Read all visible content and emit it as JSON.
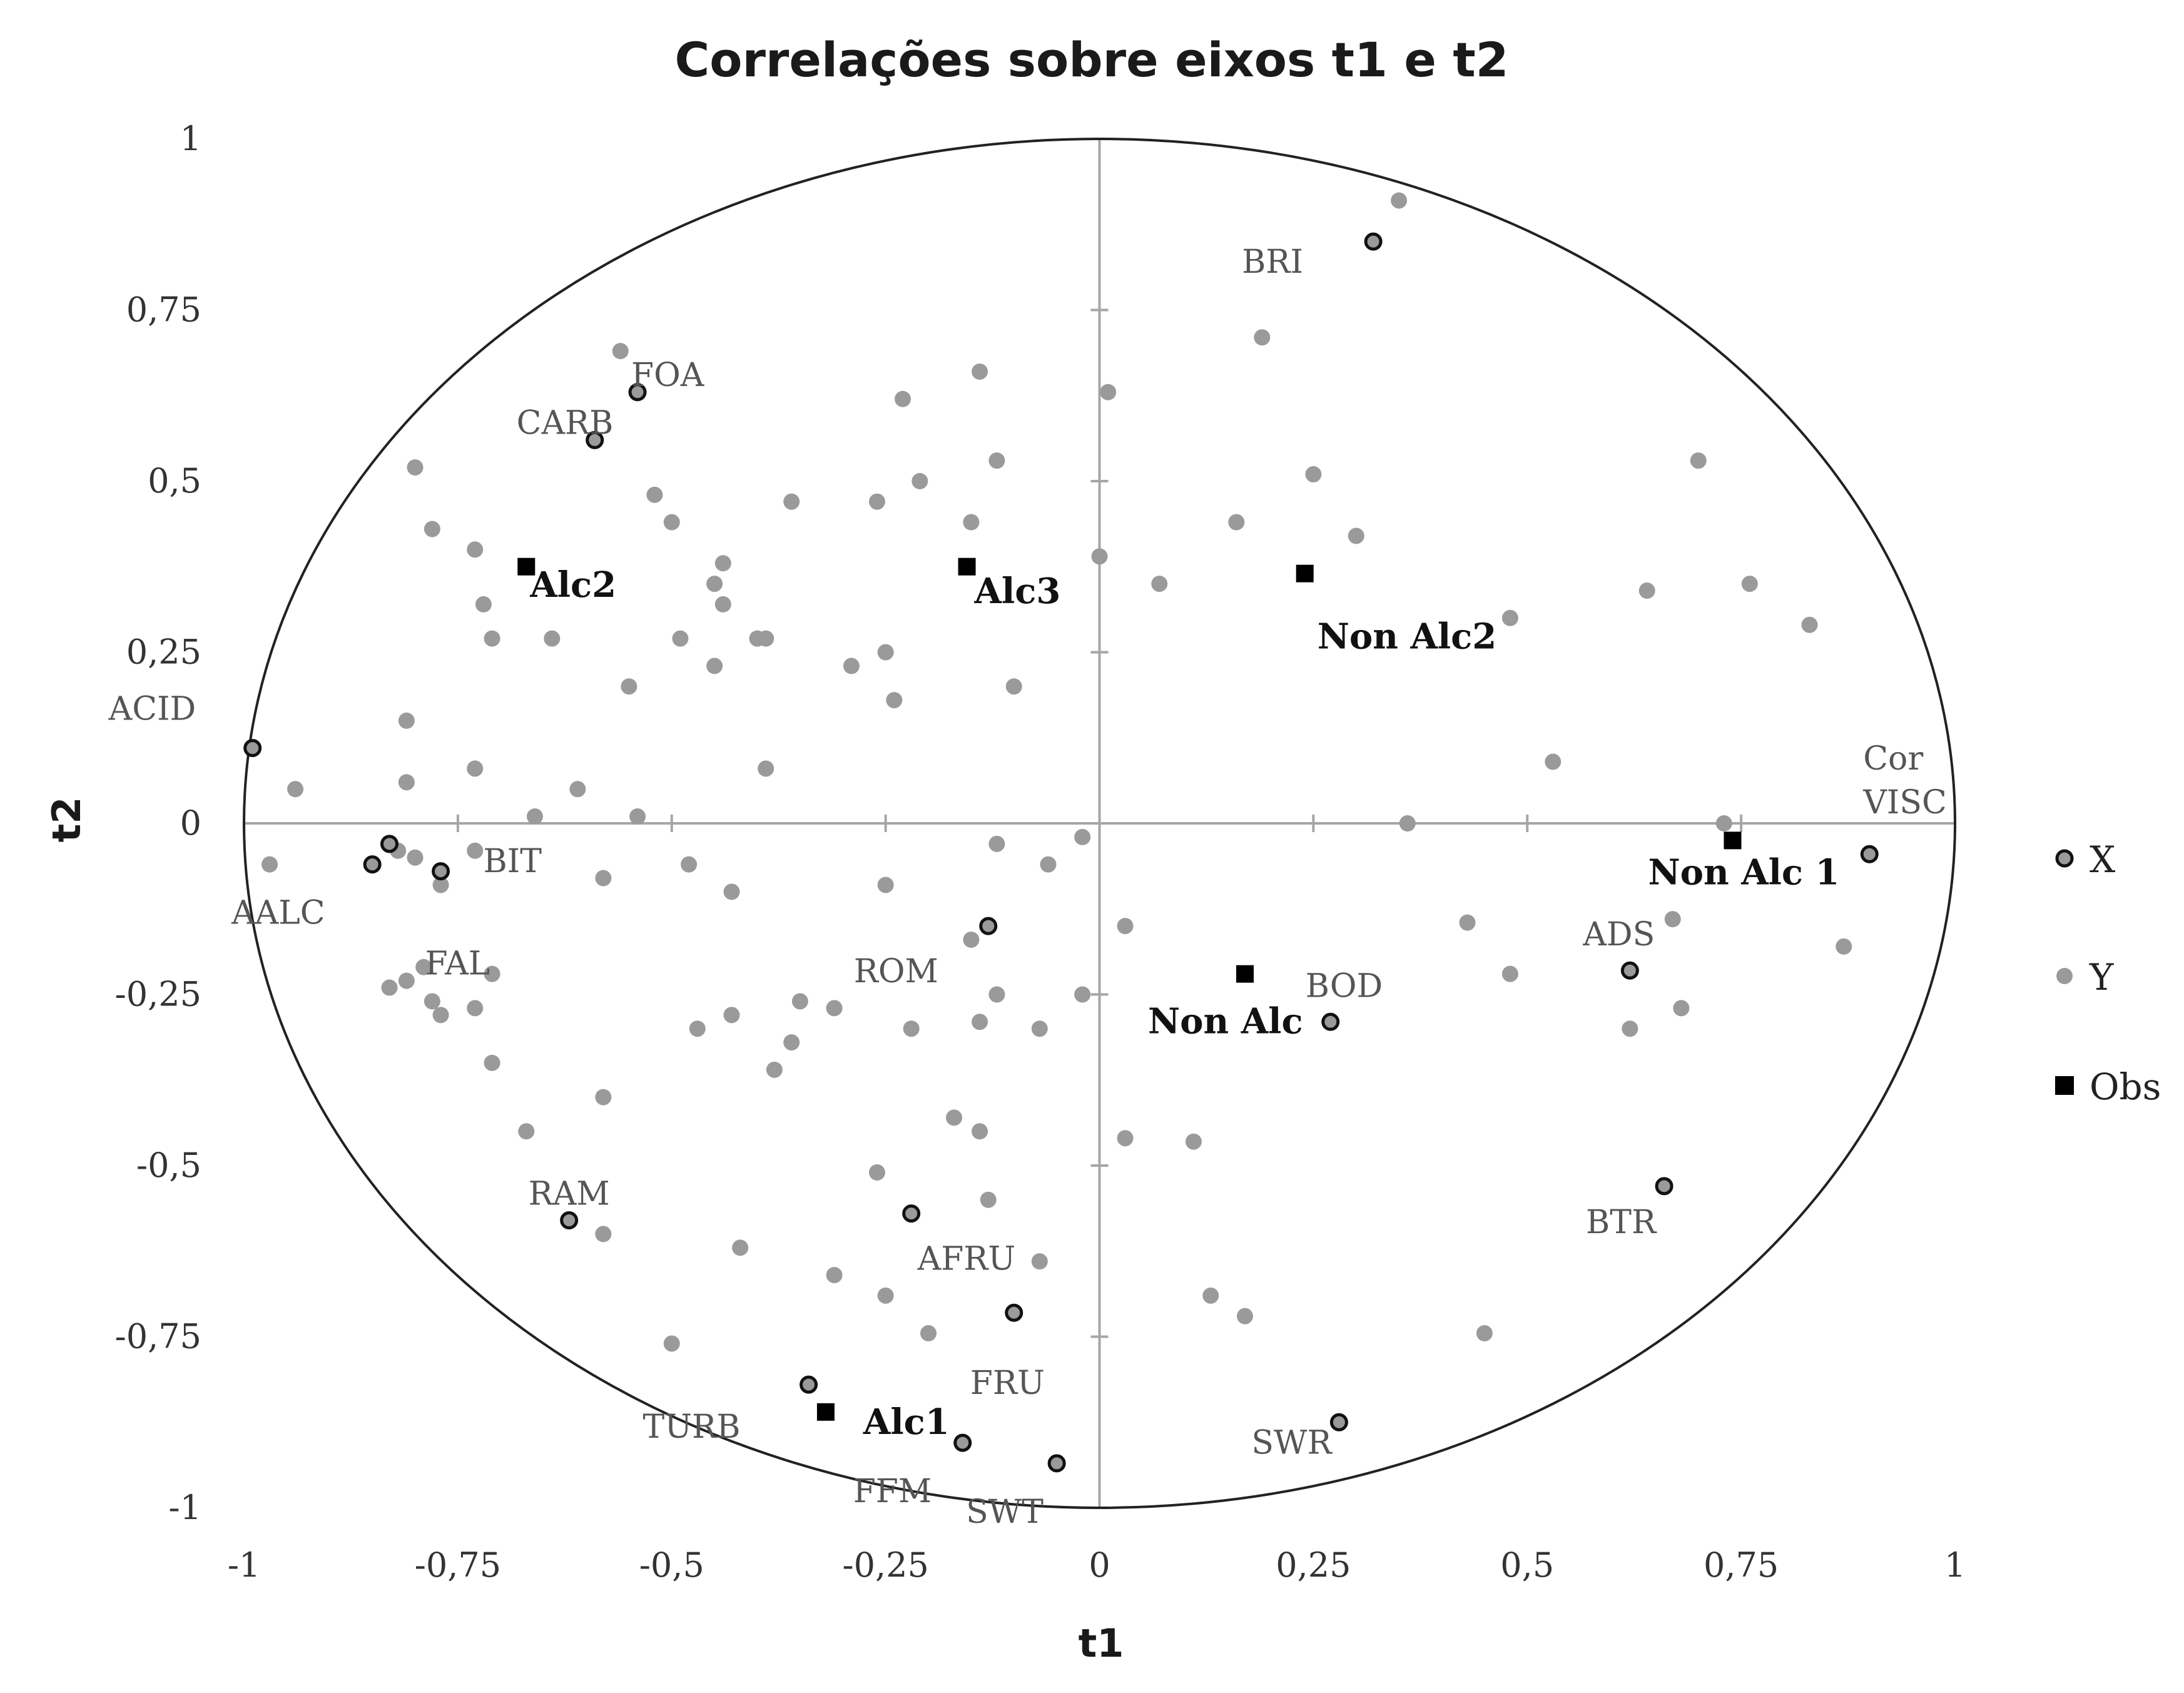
{
  "chart_data": {
    "type": "scatter",
    "title": "Correlações sobre eixos t1 e t2",
    "xlabel": "t1",
    "ylabel": "t2",
    "xlim": [
      -1,
      1
    ],
    "ylim": [
      -1,
      1
    ],
    "x_ticks": [
      "-1",
      "-0,75",
      "-0,5",
      "-0,25",
      "0",
      "0,25",
      "0,5",
      "0,75",
      "1"
    ],
    "y_ticks": [
      "1",
      "0,75",
      "0,5",
      "0,25",
      "0",
      "-0,25",
      "-0,5",
      "-0,75",
      "-1"
    ],
    "correlation_circle": true,
    "legend_position": "right",
    "colors": {
      "X": "#9a9a9a",
      "Y": "#9a9a9a",
      "Obs": "#000000",
      "axis": "#a6a6a6",
      "circle": "#222222"
    },
    "series": [
      {
        "name": "X",
        "marker": "ring",
        "points": [
          {
            "label": "BRI",
            "x": 0.32,
            "y": 0.85
          },
          {
            "label": "FOA",
            "x": -0.54,
            "y": 0.63
          },
          {
            "label": "CARB",
            "x": -0.59,
            "y": 0.56
          },
          {
            "label": "ACID",
            "x": -0.99,
            "y": 0.11
          },
          {
            "label": "BIT",
            "x": -0.83,
            "y": -0.03
          },
          {
            "label": "AALC",
            "x": -0.85,
            "y": -0.06
          },
          {
            "label": "FAL",
            "x": -0.77,
            "y": -0.07
          },
          {
            "label": "ROM",
            "x": -0.13,
            "y": -0.15
          },
          {
            "label": "Cor",
            "x": 0.9,
            "y": -0.045
          },
          {
            "label": "ADS",
            "x": 0.62,
            "y": -0.215
          },
          {
            "label": "BOD",
            "x": 0.27,
            "y": -0.29
          },
          {
            "label": "BTR",
            "x": 0.66,
            "y": -0.53
          },
          {
            "label": "RAM",
            "x": -0.62,
            "y": -0.58
          },
          {
            "label": "AFRU",
            "x": -0.22,
            "y": -0.57
          },
          {
            "label": "FRU",
            "x": -0.1,
            "y": -0.715
          },
          {
            "label": "TURB",
            "x": -0.34,
            "y": -0.82
          },
          {
            "label": "FFM",
            "x": -0.16,
            "y": -0.905
          },
          {
            "label": "SWT",
            "x": -0.05,
            "y": -0.935
          },
          {
            "label": "SWR",
            "x": 0.28,
            "y": -0.875
          }
        ]
      },
      {
        "name": "Y",
        "marker": "dot",
        "points": [
          {
            "x": 0.35,
            "y": 0.91
          },
          {
            "x": 0.19,
            "y": 0.71
          },
          {
            "x": -0.56,
            "y": 0.69
          },
          {
            "x": -0.14,
            "y": 0.66
          },
          {
            "x": 0.01,
            "y": 0.63
          },
          {
            "x": -0.23,
            "y": 0.62
          },
          {
            "x": -0.8,
            "y": 0.52
          },
          {
            "x": -0.12,
            "y": 0.53
          },
          {
            "x": 0.7,
            "y": 0.53
          },
          {
            "x": 0.25,
            "y": 0.51
          },
          {
            "x": -0.52,
            "y": 0.48
          },
          {
            "x": -0.36,
            "y": 0.47
          },
          {
            "x": -0.26,
            "y": 0.47
          },
          {
            "x": -0.21,
            "y": 0.5
          },
          {
            "x": -0.78,
            "y": 0.43
          },
          {
            "x": -0.5,
            "y": 0.44
          },
          {
            "x": -0.15,
            "y": 0.44
          },
          {
            "x": 0.16,
            "y": 0.44
          },
          {
            "x": 0.3,
            "y": 0.42
          },
          {
            "x": -0.73,
            "y": 0.4
          },
          {
            "x": -0.44,
            "y": 0.38
          },
          {
            "x": 0.0,
            "y": 0.39
          },
          {
            "x": -0.45,
            "y": 0.35
          },
          {
            "x": 0.07,
            "y": 0.35
          },
          {
            "x": 0.76,
            "y": 0.35
          },
          {
            "x": 0.64,
            "y": 0.34
          },
          {
            "x": -0.72,
            "y": 0.32
          },
          {
            "x": -0.44,
            "y": 0.32
          },
          {
            "x": 0.48,
            "y": 0.3
          },
          {
            "x": 0.83,
            "y": 0.29
          },
          {
            "x": -0.71,
            "y": 0.27
          },
          {
            "x": -0.64,
            "y": 0.27
          },
          {
            "x": -0.49,
            "y": 0.27
          },
          {
            "x": -0.4,
            "y": 0.27
          },
          {
            "x": -0.39,
            "y": 0.27
          },
          {
            "x": -0.25,
            "y": 0.25
          },
          {
            "x": -0.29,
            "y": 0.23
          },
          {
            "x": -0.45,
            "y": 0.23
          },
          {
            "x": -0.55,
            "y": 0.2
          },
          {
            "x": -0.1,
            "y": 0.2
          },
          {
            "x": -0.24,
            "y": 0.18
          },
          {
            "x": -0.81,
            "y": 0.15
          },
          {
            "x": 0.53,
            "y": 0.09
          },
          {
            "x": -0.73,
            "y": 0.08
          },
          {
            "x": -0.39,
            "y": 0.08
          },
          {
            "x": -0.94,
            "y": 0.05
          },
          {
            "x": -0.81,
            "y": 0.06
          },
          {
            "x": -0.61,
            "y": 0.05
          },
          {
            "x": -0.66,
            "y": 0.01
          },
          {
            "x": -0.54,
            "y": 0.01
          },
          {
            "x": 0.36,
            "y": 0.0
          },
          {
            "x": 0.73,
            "y": 0.0
          },
          {
            "x": -0.97,
            "y": -0.06
          },
          {
            "x": -0.82,
            "y": -0.04
          },
          {
            "x": -0.8,
            "y": -0.05
          },
          {
            "x": -0.73,
            "y": -0.04
          },
          {
            "x": -0.77,
            "y": -0.09
          },
          {
            "x": -0.58,
            "y": -0.08
          },
          {
            "x": -0.48,
            "y": -0.06
          },
          {
            "x": -0.43,
            "y": -0.1
          },
          {
            "x": -0.25,
            "y": -0.09
          },
          {
            "x": -0.12,
            "y": -0.03
          },
          {
            "x": -0.06,
            "y": -0.06
          },
          {
            "x": -0.02,
            "y": -0.02
          },
          {
            "x": -0.15,
            "y": -0.17
          },
          {
            "x": 0.03,
            "y": -0.15
          },
          {
            "x": 0.43,
            "y": -0.145
          },
          {
            "x": 0.67,
            "y": -0.14
          },
          {
            "x": 0.87,
            "y": -0.18
          },
          {
            "x": -0.79,
            "y": -0.21
          },
          {
            "x": -0.81,
            "y": -0.23
          },
          {
            "x": -0.83,
            "y": -0.24
          },
          {
            "x": -0.71,
            "y": -0.22
          },
          {
            "x": -0.78,
            "y": -0.26
          },
          {
            "x": -0.77,
            "y": -0.28
          },
          {
            "x": -0.73,
            "y": -0.27
          },
          {
            "x": -0.35,
            "y": -0.26
          },
          {
            "x": -0.12,
            "y": -0.25
          },
          {
            "x": -0.02,
            "y": -0.25
          },
          {
            "x": 0.48,
            "y": -0.22
          },
          {
            "x": -0.43,
            "y": -0.28
          },
          {
            "x": -0.31,
            "y": -0.27
          },
          {
            "x": -0.47,
            "y": -0.3
          },
          {
            "x": -0.22,
            "y": -0.3
          },
          {
            "x": -0.14,
            "y": -0.29
          },
          {
            "x": -0.07,
            "y": -0.3
          },
          {
            "x": 0.62,
            "y": -0.3
          },
          {
            "x": 0.68,
            "y": -0.27
          },
          {
            "x": -0.36,
            "y": -0.32
          },
          {
            "x": -0.71,
            "y": -0.35
          },
          {
            "x": -0.38,
            "y": -0.36
          },
          {
            "x": -0.58,
            "y": -0.4
          },
          {
            "x": -0.17,
            "y": -0.43
          },
          {
            "x": -0.67,
            "y": -0.45
          },
          {
            "x": -0.14,
            "y": -0.45
          },
          {
            "x": 0.03,
            "y": -0.46
          },
          {
            "x": 0.11,
            "y": -0.465
          },
          {
            "x": -0.26,
            "y": -0.51
          },
          {
            "x": -0.13,
            "y": -0.55
          },
          {
            "x": -0.58,
            "y": -0.6
          },
          {
            "x": -0.42,
            "y": -0.62
          },
          {
            "x": -0.07,
            "y": -0.64
          },
          {
            "x": -0.31,
            "y": -0.66
          },
          {
            "x": -0.25,
            "y": -0.69
          },
          {
            "x": 0.13,
            "y": -0.69
          },
          {
            "x": 0.17,
            "y": -0.72
          },
          {
            "x": -0.2,
            "y": -0.745
          },
          {
            "x": 0.45,
            "y": -0.745
          },
          {
            "x": -0.5,
            "y": -0.76
          }
        ]
      },
      {
        "name": "Obs",
        "marker": "square",
        "points": [
          {
            "label": "Alc2",
            "x": -0.67,
            "y": 0.375
          },
          {
            "label": "Alc3",
            "x": -0.155,
            "y": 0.375
          },
          {
            "label": "Non Alc2",
            "x": 0.24,
            "y": 0.365
          },
          {
            "label": "Non Alc 1",
            "x": 0.74,
            "y": -0.025
          },
          {
            "label": "Non Alc",
            "x": 0.17,
            "y": -0.22
          },
          {
            "label": "Alc1",
            "x": -0.32,
            "y": -0.86
          }
        ]
      }
    ],
    "extra_labels": [
      "VISC"
    ]
  }
}
